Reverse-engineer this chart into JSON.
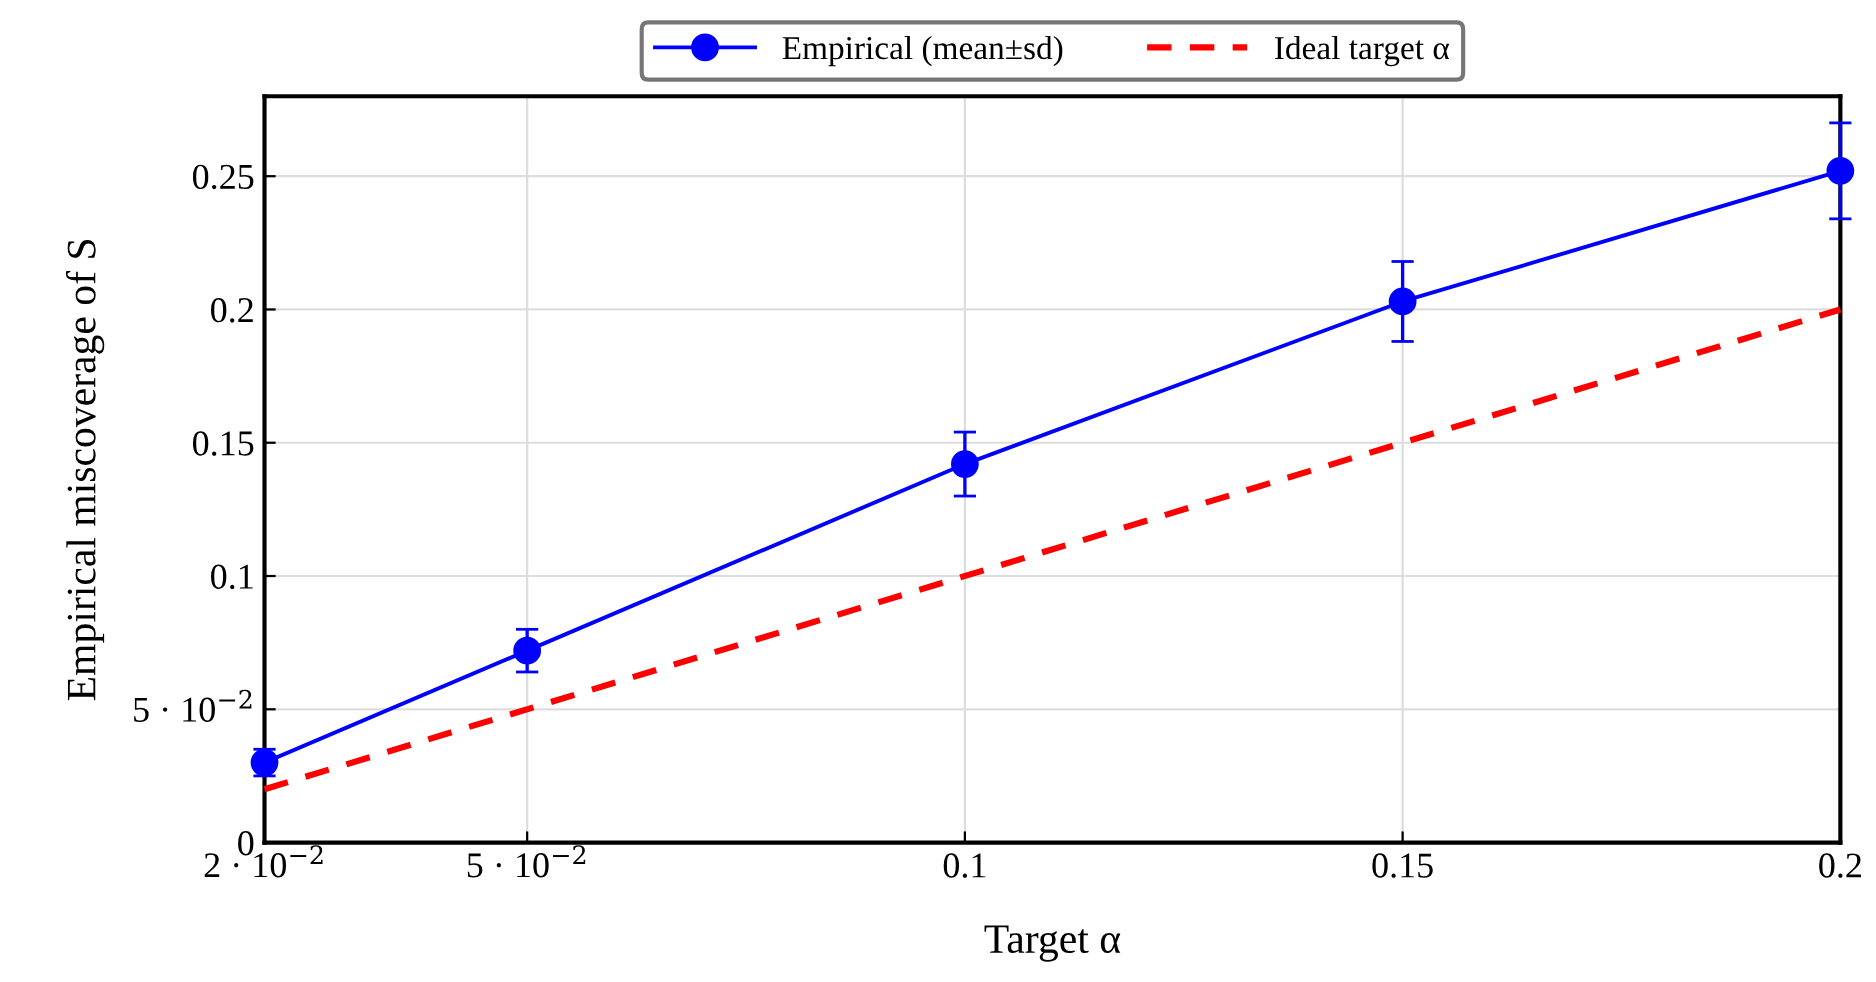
{
  "chart_data": {
    "type": "line",
    "xlabel": "Target α",
    "ylabel": "Empirical miscoverage of S",
    "x": [
      0.02,
      0.05,
      0.1,
      0.15,
      0.2
    ],
    "series": [
      {
        "name": "Empirical (mean±sd)",
        "color": "#0000ff",
        "values": [
          0.03,
          0.072,
          0.142,
          0.203,
          0.252
        ],
        "errors": [
          0.005,
          0.008,
          0.012,
          0.015,
          0.018
        ],
        "marker": "circle",
        "line_style": "solid"
      },
      {
        "name": "Ideal target α",
        "color": "#ff0000",
        "x": [
          0.02,
          0.2
        ],
        "values": [
          0.02,
          0.2
        ],
        "marker": "none",
        "line_style": "dashed"
      }
    ],
    "xlim": [
      0.02,
      0.2
    ],
    "ylim": [
      0,
      0.28
    ],
    "xticks": [
      {
        "value": 0.02,
        "label": "2 · 10$^{−2}$"
      },
      {
        "value": 0.05,
        "label": "5 · 10$^{−2}$"
      },
      0.1,
      0.15,
      0.2
    ],
    "yticks": [
      0,
      {
        "value": 0.05,
        "label": "5 · 10$^{−2}$"
      },
      0.1,
      0.15,
      0.2,
      0.25
    ],
    "grid": true,
    "legend": "top"
  }
}
